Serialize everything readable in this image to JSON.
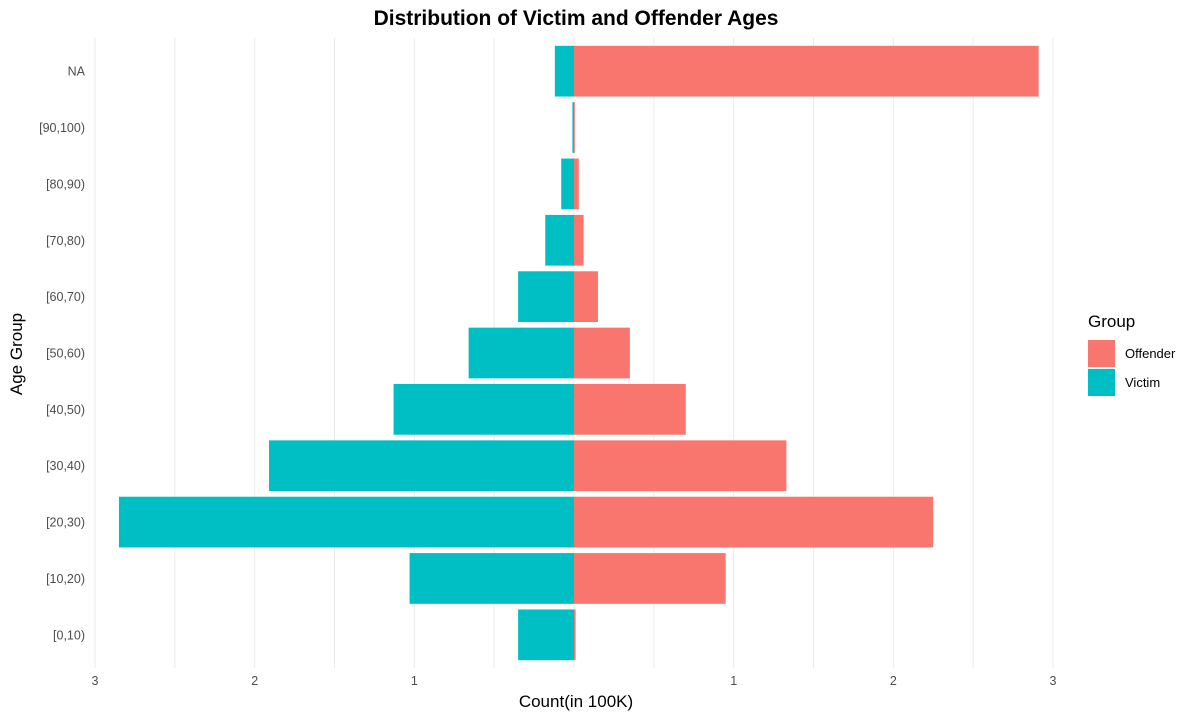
{
  "chart_data": {
    "type": "bar",
    "orientation": "horizontal",
    "layout": "population-pyramid",
    "title": "Distribution of Victim and Offender Ages",
    "xlabel": "Count(in 100K)",
    "ylabel": "Age Group",
    "categories": [
      "[0,10)",
      "[10,20)",
      "[20,30)",
      "[30,40)",
      "[40,50)",
      "[50,60)",
      "[60,70)",
      "[70,80)",
      "[80,90)",
      "[90,100)",
      "NA"
    ],
    "series": [
      {
        "name": "Offender",
        "side": "right",
        "color": "#F8766D",
        "values": [
          0.01,
          0.95,
          2.25,
          1.33,
          0.7,
          0.35,
          0.15,
          0.06,
          0.03,
          0.005,
          2.91
        ]
      },
      {
        "name": "Victim",
        "side": "left",
        "color": "#00BFC4",
        "values": [
          0.35,
          1.03,
          2.85,
          1.91,
          1.13,
          0.66,
          0.35,
          0.18,
          0.08,
          0.01,
          0.12
        ]
      }
    ],
    "xlim": [
      -3,
      3
    ],
    "x_ticks": [
      -3,
      -2,
      -1,
      1,
      2,
      3
    ],
    "x_tick_labels": [
      "3",
      "2",
      "1",
      "1",
      "2",
      "3"
    ],
    "grid": true,
    "legend": {
      "title": "Group",
      "position": "right",
      "entries": [
        "Offender",
        "Victim"
      ]
    }
  }
}
